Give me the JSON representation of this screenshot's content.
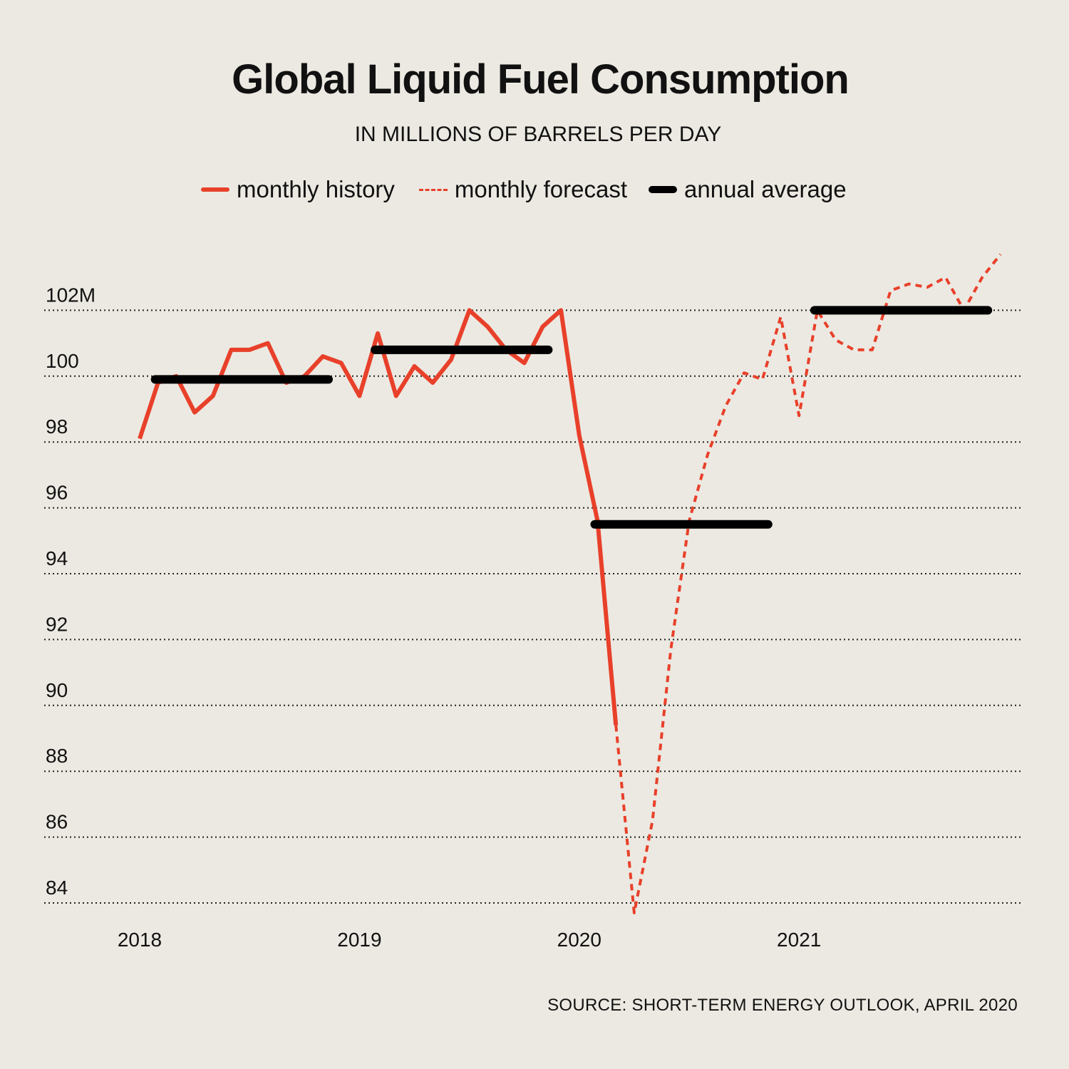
{
  "chart_data": {
    "type": "line",
    "title": "Global Liquid Fuel Consumption",
    "subtitle": "IN MILLIONS OF BARRELS PER DAY",
    "source": "SOURCE: SHORT-TERM ENERGY OUTLOOK, APRIL 2020",
    "ylim": [
      84,
      102
    ],
    "yticks": [
      84,
      86,
      88,
      90,
      92,
      94,
      96,
      98,
      100,
      102
    ],
    "ytick_labels": [
      "84",
      "86",
      "88",
      "90",
      "92",
      "94",
      "96",
      "98",
      "100",
      "102M"
    ],
    "xticks": [
      "2018",
      "2019",
      "2020",
      "2021"
    ],
    "grid": "horizontal dotted",
    "legend": {
      "placement": "top",
      "entries": [
        "monthly history",
        "monthly forecast",
        "annual average"
      ]
    },
    "colors": {
      "history": "#e8402a",
      "forecast": "#e8402a",
      "average": "#000000",
      "background": "#ece9e2"
    },
    "series": [
      {
        "name": "monthly history",
        "style": "solid",
        "x": [
          "2018-01",
          "2018-02",
          "2018-03",
          "2018-04",
          "2018-05",
          "2018-06",
          "2018-07",
          "2018-08",
          "2018-09",
          "2018-10",
          "2018-11",
          "2018-12",
          "2019-01",
          "2019-02",
          "2019-03",
          "2019-04",
          "2019-05",
          "2019-06",
          "2019-07",
          "2019-08",
          "2019-09",
          "2019-10",
          "2019-11",
          "2019-12",
          "2020-01",
          "2020-02",
          "2020-03"
        ],
        "values": [
          98.1,
          99.8,
          100.0,
          98.9,
          99.4,
          100.8,
          100.8,
          101.0,
          99.8,
          100.0,
          100.6,
          100.4,
          99.4,
          101.3,
          99.4,
          100.3,
          99.8,
          100.5,
          102.0,
          101.5,
          100.8,
          100.4,
          101.5,
          102.0,
          98.2,
          95.6,
          89.4
        ]
      },
      {
        "name": "monthly forecast",
        "style": "dashed",
        "x": [
          "2020-03",
          "2020-04",
          "2020-05",
          "2020-06",
          "2020-07",
          "2020-08",
          "2020-09",
          "2020-10",
          "2020-11",
          "2020-12",
          "2021-01",
          "2021-02",
          "2021-03",
          "2021-04",
          "2021-05",
          "2021-06",
          "2021-07",
          "2021-08",
          "2021-09",
          "2021-10",
          "2021-11",
          "2021-12"
        ],
        "values": [
          89.4,
          83.7,
          86.5,
          91.7,
          95.6,
          97.6,
          99.1,
          100.1,
          99.9,
          101.8,
          98.8,
          102.0,
          101.1,
          100.8,
          100.8,
          102.6,
          102.8,
          102.7,
          103.0,
          102.0,
          103.0,
          103.7
        ]
      },
      {
        "name": "annual average",
        "style": "bar",
        "years": [
          "2018",
          "2019",
          "2020",
          "2021"
        ],
        "values": [
          99.9,
          100.8,
          95.5,
          102.0
        ]
      }
    ]
  }
}
